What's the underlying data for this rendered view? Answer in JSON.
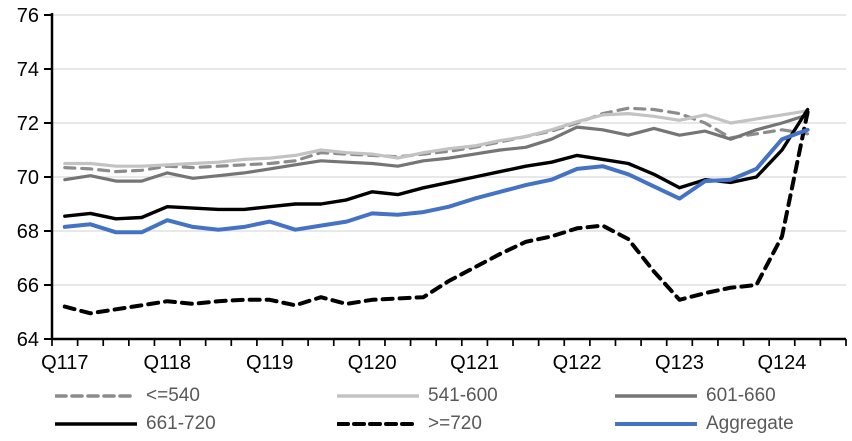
{
  "chart_data": {
    "type": "line",
    "title": "",
    "legend_position": "bottom",
    "grid": "horizontal",
    "x_axis": {
      "unit": "quarter",
      "visible_tick_labels": [
        "Q117",
        "Q118",
        "Q119",
        "Q120",
        "Q121",
        "Q122",
        "Q123",
        "Q124"
      ],
      "categories": [
        "2017Q1",
        "2017Q2",
        "2017Q3",
        "2017Q4",
        "2018Q1",
        "2018Q2",
        "2018Q3",
        "2018Q4",
        "2019Q1",
        "2019Q2",
        "2019Q3",
        "2019Q4",
        "2020Q1",
        "2020Q2",
        "2020Q3",
        "2020Q4",
        "2021Q1",
        "2021Q2",
        "2021Q3",
        "2021Q4",
        "2022Q1",
        "2022Q2",
        "2022Q3",
        "2022Q4",
        "2023Q1",
        "2023Q2",
        "2023Q3",
        "2023Q4",
        "2024Q1",
        "2024Q2"
      ]
    },
    "y_axis": {
      "min": 64,
      "max": 76,
      "step": 2,
      "tick_labels": [
        "64",
        "66",
        "68",
        "70",
        "72",
        "74",
        "76"
      ]
    },
    "series": [
      {
        "name": "<=540",
        "color": "#8C8C8C",
        "style": "dashed",
        "width": 3.2,
        "values": [
          70.35,
          70.3,
          70.2,
          70.25,
          70.4,
          70.35,
          70.4,
          70.45,
          70.5,
          70.6,
          70.9,
          70.85,
          70.8,
          70.75,
          70.85,
          70.95,
          71.1,
          71.3,
          71.5,
          71.7,
          72.0,
          72.35,
          72.55,
          72.5,
          72.35,
          72.0,
          71.45,
          71.6,
          71.75,
          71.6
        ]
      },
      {
        "name": "541-600",
        "color": "#C3C3C3",
        "style": "solid",
        "width": 3.2,
        "values": [
          70.5,
          70.5,
          70.4,
          70.4,
          70.45,
          70.5,
          70.55,
          70.65,
          70.7,
          70.8,
          71.0,
          70.9,
          70.85,
          70.7,
          70.9,
          71.05,
          71.15,
          71.35,
          71.5,
          71.75,
          72.05,
          72.3,
          72.35,
          72.25,
          72.1,
          72.3,
          72.0,
          72.15,
          72.3,
          72.45
        ]
      },
      {
        "name": "601-660",
        "color": "#757575",
        "style": "solid",
        "width": 3.2,
        "values": [
          69.9,
          70.05,
          69.85,
          69.85,
          70.15,
          69.95,
          70.05,
          70.15,
          70.3,
          70.45,
          70.6,
          70.55,
          70.5,
          70.4,
          70.6,
          70.7,
          70.85,
          71.0,
          71.1,
          71.4,
          71.85,
          71.75,
          71.55,
          71.8,
          71.55,
          71.7,
          71.4,
          71.75,
          72.0,
          72.3
        ]
      },
      {
        "name": "661-720",
        "color": "#000000",
        "style": "solid",
        "width": 3.4,
        "values": [
          68.55,
          68.65,
          68.45,
          68.5,
          68.9,
          68.85,
          68.8,
          68.8,
          68.9,
          69.0,
          69.0,
          69.15,
          69.45,
          69.35,
          69.6,
          69.8,
          70.0,
          70.2,
          70.4,
          70.55,
          70.8,
          70.65,
          70.5,
          70.1,
          69.6,
          69.9,
          69.8,
          70.0,
          71.0,
          72.5
        ]
      },
      {
        "name": ">=720",
        "color": "#000000",
        "style": "dashed",
        "width": 4,
        "values": [
          65.2,
          64.95,
          65.1,
          65.25,
          65.4,
          65.3,
          65.4,
          65.45,
          65.45,
          65.25,
          65.55,
          65.3,
          65.45,
          65.5,
          65.55,
          66.15,
          66.65,
          67.15,
          67.6,
          67.8,
          68.1,
          68.2,
          67.7,
          66.5,
          65.45,
          65.7,
          65.9,
          66.0,
          67.8,
          72.4
        ]
      },
      {
        "name": "Aggregate",
        "color": "#4472C4",
        "style": "solid",
        "width": 4,
        "values": [
          68.15,
          68.25,
          67.95,
          67.95,
          68.4,
          68.15,
          68.05,
          68.15,
          68.35,
          68.05,
          68.2,
          68.35,
          68.65,
          68.6,
          68.7,
          68.9,
          69.2,
          69.45,
          69.7,
          69.9,
          70.3,
          70.4,
          70.1,
          69.65,
          69.2,
          69.85,
          69.9,
          70.3,
          71.4,
          71.75
        ]
      }
    ]
  },
  "style": {
    "gridline_color": "#D9D9D9",
    "axis_color": "#000000",
    "axis_label_color": "#000000",
    "legend_text_color": "#595959",
    "background": "#FFFFFF"
  }
}
